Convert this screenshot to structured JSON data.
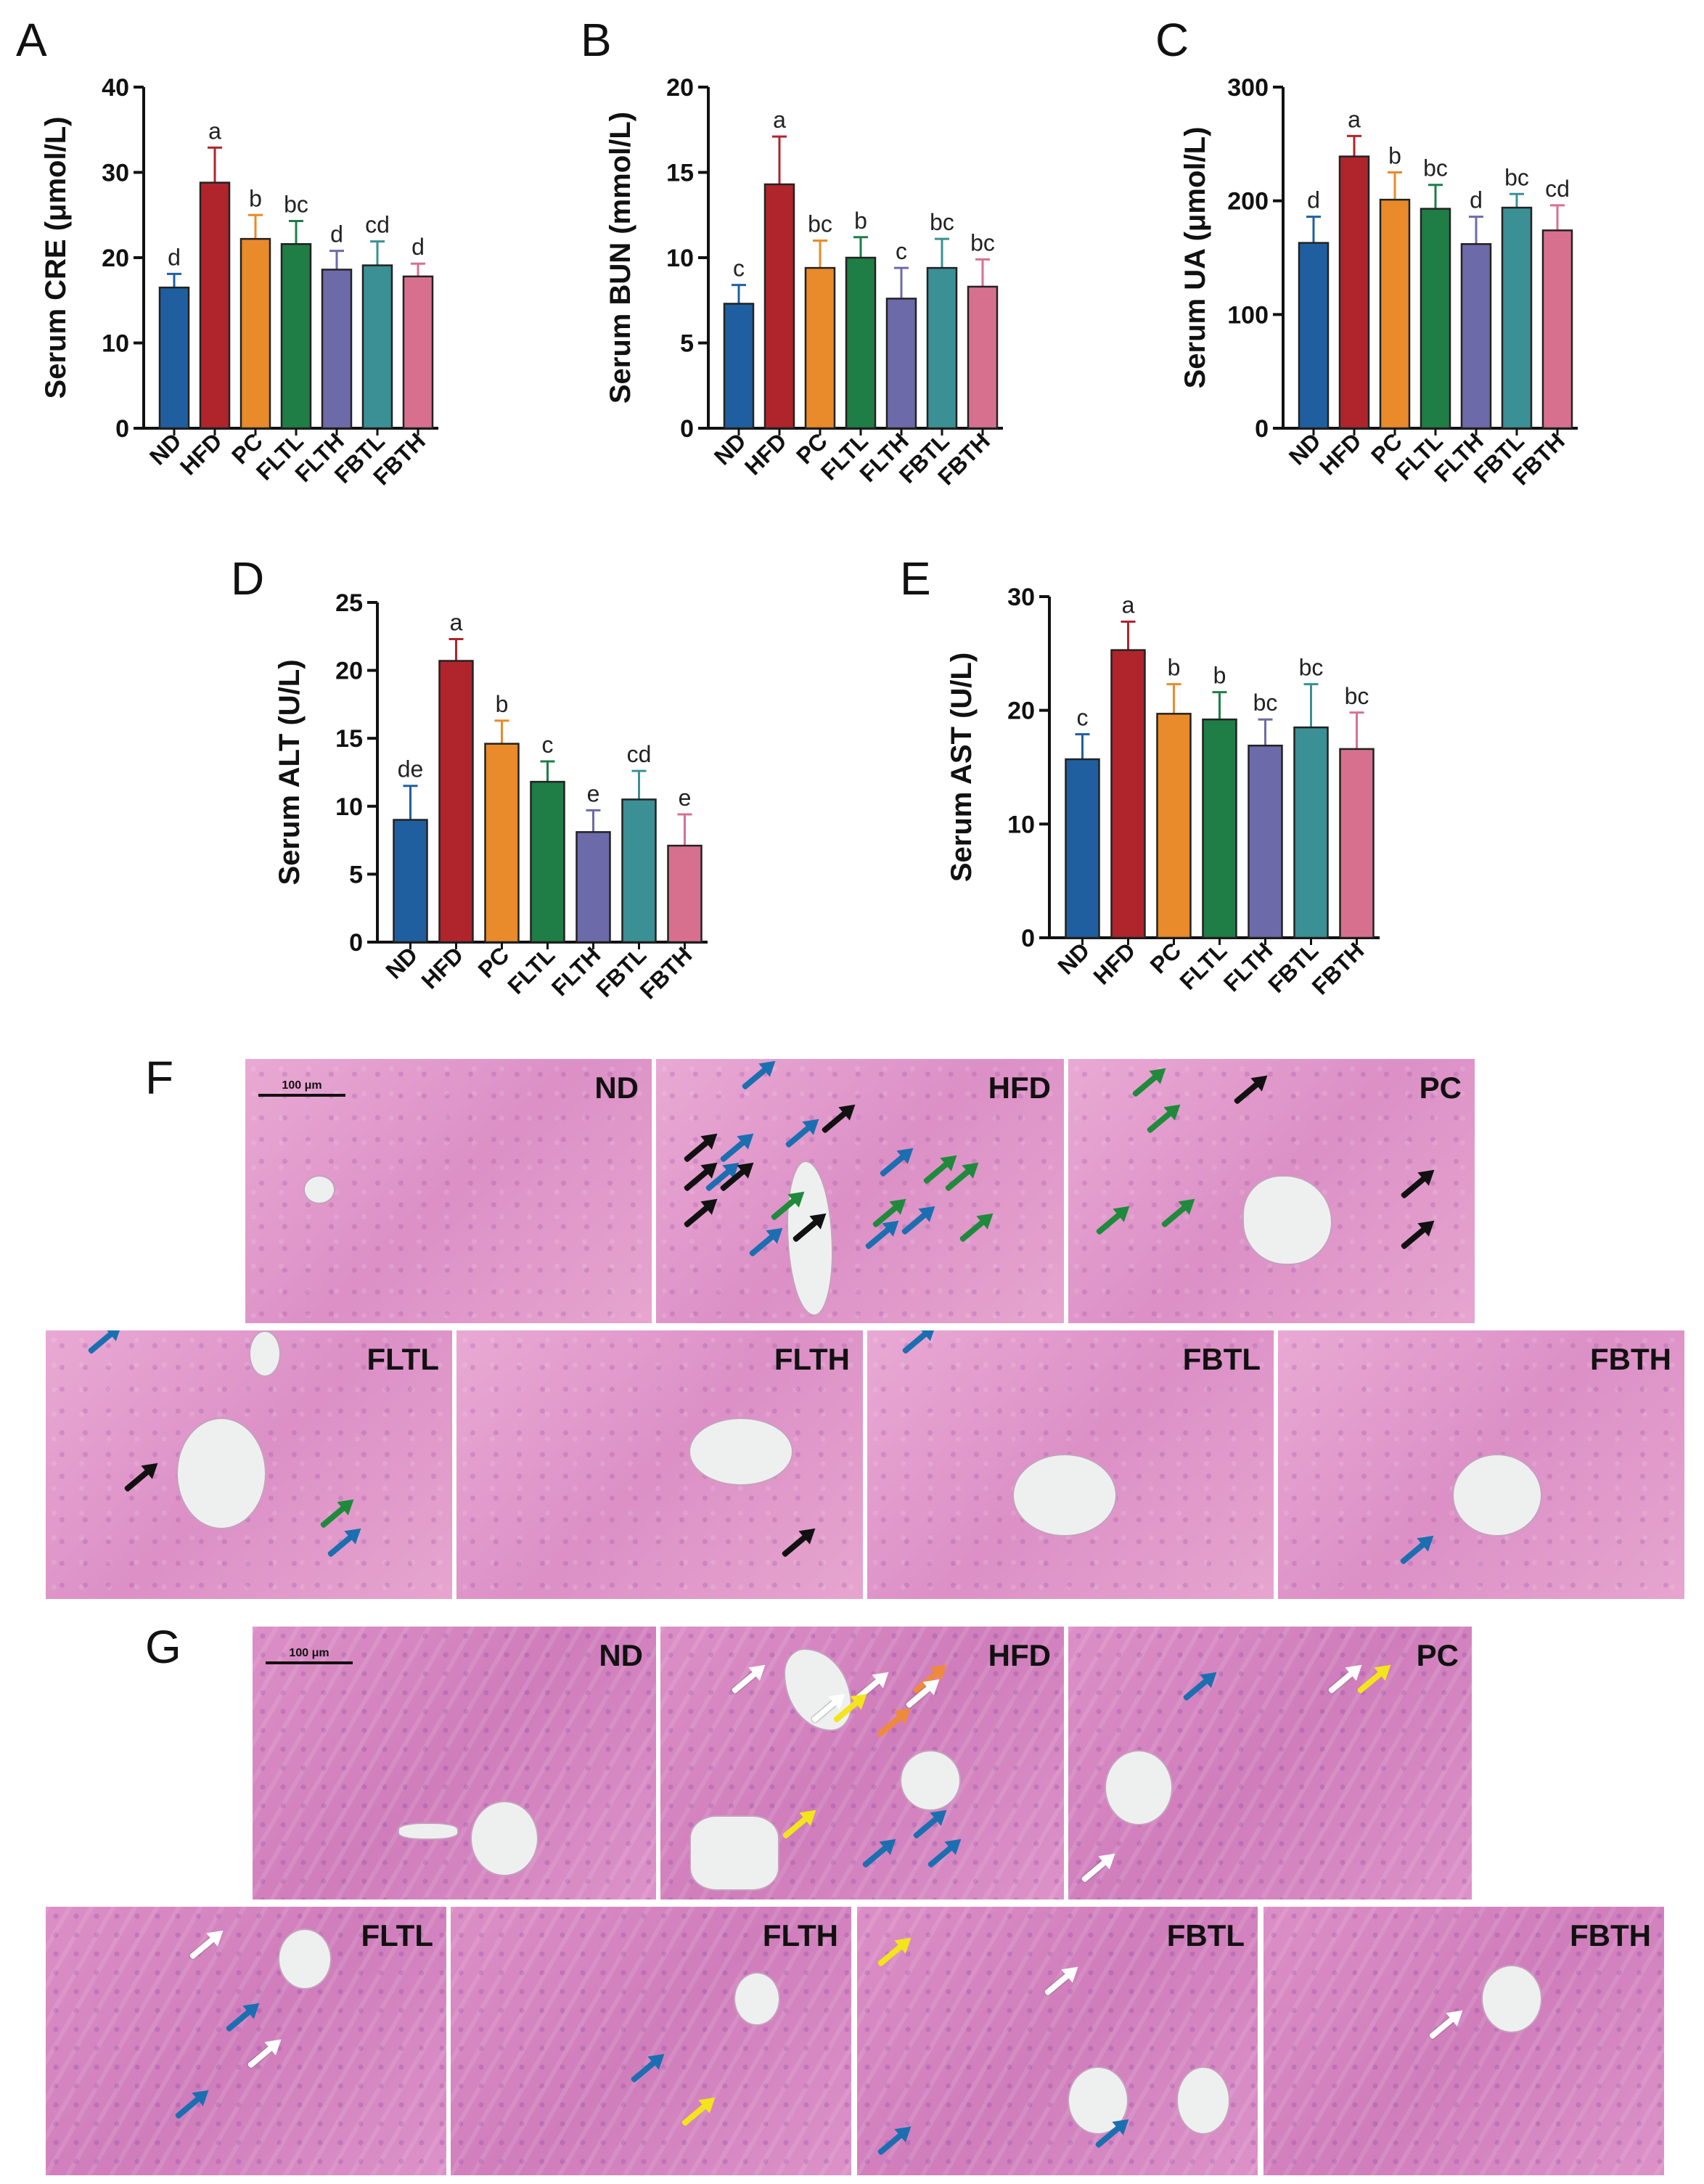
{
  "colors": {
    "ND": "#1f5fa0",
    "HFD": "#b0242c",
    "PC": "#e98a2b",
    "FLTL": "#1f7d46",
    "FLTH": "#6d6aaa",
    "FBTL": "#3a9095",
    "FBTH": "#d7708f"
  },
  "chart_data": [
    {
      "type": "bar",
      "panel": "A",
      "ylabel": "Serum CRE (μmol/L)",
      "categories": [
        "ND",
        "HFD",
        "PC",
        "FLTL",
        "FLTH",
        "FBTL",
        "FBTH"
      ],
      "values": [
        16.5,
        28.8,
        22.2,
        21.6,
        18.6,
        19.1,
        17.8
      ],
      "errors": [
        1.6,
        4.1,
        2.8,
        2.7,
        2.2,
        2.8,
        1.5
      ],
      "letters": [
        "d",
        "a",
        "b",
        "bc",
        "d",
        "cd",
        "d"
      ],
      "ylim": [
        0,
        40
      ],
      "yticks": [
        0,
        10,
        20,
        30,
        40
      ]
    },
    {
      "type": "bar",
      "panel": "B",
      "ylabel": "Serum BUN (mmol/L)",
      "categories": [
        "ND",
        "HFD",
        "PC",
        "FLTL",
        "FLTH",
        "FBTL",
        "FBTH"
      ],
      "values": [
        7.3,
        14.3,
        9.4,
        10.0,
        7.6,
        9.4,
        8.3
      ],
      "errors": [
        1.1,
        2.8,
        1.6,
        1.2,
        1.8,
        1.7,
        1.6
      ],
      "letters": [
        "c",
        "a",
        "bc",
        "b",
        "c",
        "bc",
        "bc"
      ],
      "ylim": [
        0,
        20
      ],
      "yticks": [
        0,
        5,
        10,
        15,
        20
      ]
    },
    {
      "type": "bar",
      "panel": "C",
      "ylabel": "Serum UA (μmol/L)",
      "categories": [
        "ND",
        "HFD",
        "PC",
        "FLTL",
        "FLTH",
        "FBTL",
        "FBTH"
      ],
      "values": [
        163,
        239,
        201,
        193,
        162,
        194,
        174
      ],
      "errors": [
        23,
        18,
        24,
        21,
        24,
        12,
        22
      ],
      "letters": [
        "d",
        "a",
        "b",
        "bc",
        "d",
        "bc",
        "cd"
      ],
      "ylim": [
        0,
        300
      ],
      "yticks": [
        0,
        100,
        200,
        300
      ]
    },
    {
      "type": "bar",
      "panel": "D",
      "ylabel": "Serum ALT (U/L)",
      "categories": [
        "ND",
        "HFD",
        "PC",
        "FLTL",
        "FLTH",
        "FBTL",
        "FBTH"
      ],
      "values": [
        9.0,
        20.7,
        14.6,
        11.8,
        8.1,
        10.5,
        7.1
      ],
      "errors": [
        2.5,
        1.6,
        1.7,
        1.5,
        1.6,
        2.1,
        2.3
      ],
      "letters": [
        "de",
        "a",
        "b",
        "c",
        "e",
        "cd",
        "e"
      ],
      "ylim": [
        0,
        25
      ],
      "yticks": [
        0,
        5,
        10,
        15,
        20,
        25
      ]
    },
    {
      "type": "bar",
      "panel": "E",
      "ylabel": "Serum AST (U/L)",
      "categories": [
        "ND",
        "HFD",
        "PC",
        "FLTL",
        "FLTH",
        "FBTL",
        "FBTH"
      ],
      "values": [
        15.7,
        25.3,
        19.7,
        19.2,
        16.9,
        18.5,
        16.6
      ],
      "errors": [
        2.2,
        2.5,
        2.6,
        2.4,
        2.3,
        3.8,
        3.2
      ],
      "letters": [
        "c",
        "a",
        "b",
        "b",
        "bc",
        "bc",
        "bc"
      ],
      "ylim": [
        0,
        30
      ],
      "yticks": [
        0,
        10,
        20,
        30
      ]
    }
  ],
  "histology": {
    "F": {
      "panel": "F",
      "scale": "100 μm",
      "tiles": [
        "ND",
        "HFD",
        "PC",
        "FLTL",
        "FLTH",
        "FBTL",
        "FBTH"
      ]
    },
    "G": {
      "panel": "G",
      "scale": "100 μm",
      "tiles": [
        "ND",
        "HFD",
        "PC",
        "FLTL",
        "FLTH",
        "FBTL",
        "FBTH"
      ]
    }
  },
  "arrow_colors": {
    "black": "#111111",
    "blue": "#1b6fb0",
    "green": "#1f8a3c",
    "white": "#ffffff",
    "yellow": "#f2e51c",
    "orange": "#f08a3a"
  }
}
